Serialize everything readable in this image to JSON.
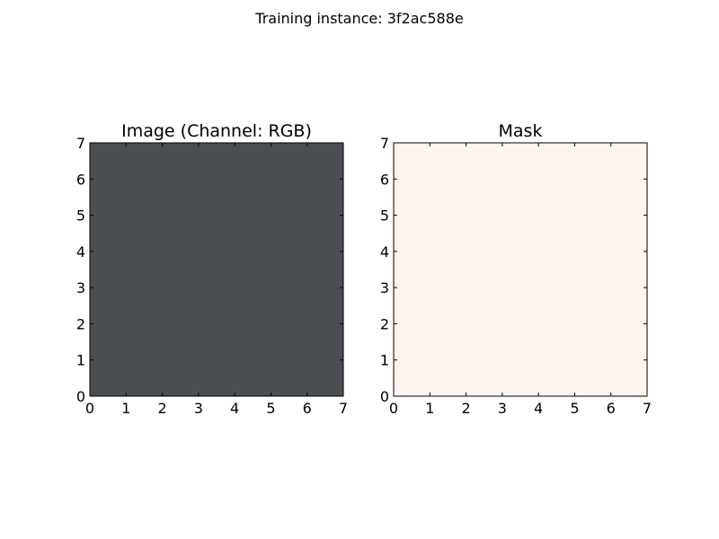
{
  "figure": {
    "suptitle": "Training instance: 3f2ac588e"
  },
  "chart_data": [
    {
      "type": "heatmap",
      "title": "Image (Channel: RGB)",
      "xlabel": "",
      "ylabel": "",
      "xlim": [
        0,
        7
      ],
      "ylim": [
        0,
        7
      ],
      "x_ticks": [
        "0",
        "1",
        "2",
        "3",
        "4",
        "5",
        "6",
        "7"
      ],
      "y_ticks": [
        "0",
        "1",
        "2",
        "3",
        "4",
        "5",
        "6",
        "7"
      ],
      "content": "grayscale textured seismic/terrain image",
      "base_color": "#4a4d52",
      "grid": false
    },
    {
      "type": "heatmap",
      "title": "Mask",
      "xlabel": "",
      "ylabel": "",
      "xlim": [
        0,
        7
      ],
      "ylim": [
        0,
        7
      ],
      "x_ticks": [
        "0",
        "1",
        "2",
        "3",
        "4",
        "5",
        "6",
        "7"
      ],
      "y_ticks": [
        "0",
        "1",
        "2",
        "3",
        "4",
        "5",
        "6",
        "7"
      ],
      "values": [
        [
          0
        ]
      ],
      "fill_color": "#fff5f0",
      "grid": false
    }
  ]
}
